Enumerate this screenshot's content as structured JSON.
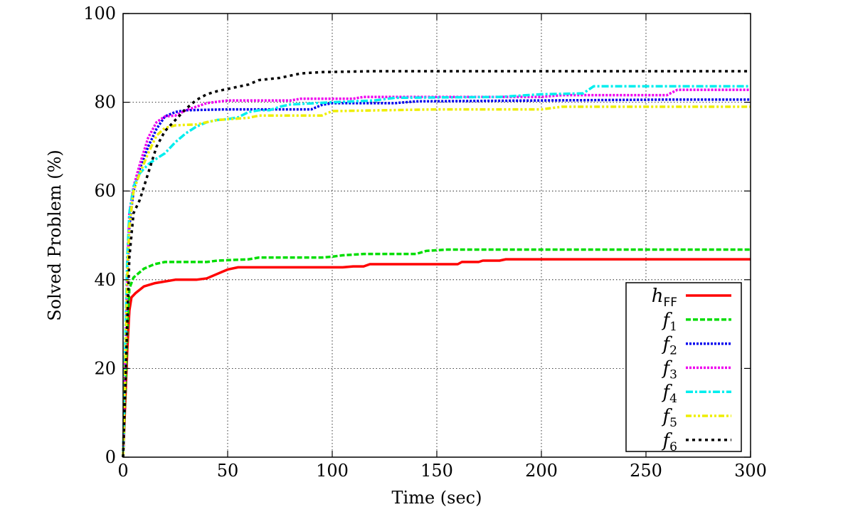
{
  "chart_data": {
    "type": "line",
    "title": "",
    "xlabel": "Time (sec)",
    "ylabel": "Solved Problem (%)",
    "xlim": [
      0,
      300
    ],
    "ylim": [
      0,
      100
    ],
    "xticks": [
      "0",
      "50",
      "100",
      "150",
      "200",
      "250",
      "300"
    ],
    "yticks": [
      "0",
      "20",
      "40",
      "60",
      "80",
      "100"
    ],
    "grid": true,
    "legend_position": "bottom-right",
    "series": [
      {
        "name": "h",
        "subscript": "FF",
        "color": "#ff0000",
        "dash": "solid",
        "points": [
          [
            0,
            0
          ],
          [
            1,
            12
          ],
          [
            2,
            24
          ],
          [
            3,
            33
          ],
          [
            4,
            36
          ],
          [
            6,
            37
          ],
          [
            10,
            38.5
          ],
          [
            15,
            39.2
          ],
          [
            25,
            40
          ],
          [
            35,
            40
          ],
          [
            40,
            40.3
          ],
          [
            45,
            41.3
          ],
          [
            50,
            42.3
          ],
          [
            55,
            42.8
          ],
          [
            100,
            42.8
          ],
          [
            105,
            42.8
          ],
          [
            110,
            43
          ],
          [
            115,
            43
          ],
          [
            118,
            43.5
          ],
          [
            155,
            43.5
          ],
          [
            160,
            43.5
          ],
          [
            162,
            44
          ],
          [
            170,
            44
          ],
          [
            172,
            44.3
          ],
          [
            180,
            44.3
          ],
          [
            183,
            44.6
          ],
          [
            300,
            44.6
          ]
        ]
      },
      {
        "name": "f",
        "subscript": "1",
        "color": "#00dd00",
        "dash": "dashed",
        "points": [
          [
            0,
            0
          ],
          [
            1,
            14
          ],
          [
            2,
            28
          ],
          [
            3,
            38
          ],
          [
            5,
            40.5
          ],
          [
            10,
            42.5
          ],
          [
            15,
            43.5
          ],
          [
            20,
            44
          ],
          [
            40,
            44
          ],
          [
            45,
            44.3
          ],
          [
            55,
            44.5
          ],
          [
            60,
            44.6
          ],
          [
            65,
            45
          ],
          [
            95,
            45
          ],
          [
            100,
            45.2
          ],
          [
            105,
            45.5
          ],
          [
            115,
            45.8
          ],
          [
            140,
            45.8
          ],
          [
            145,
            46.5
          ],
          [
            155,
            46.8
          ],
          [
            300,
            46.8
          ]
        ]
      },
      {
        "name": "f",
        "subscript": "2",
        "color": "#0000ee",
        "dash": "dotted",
        "points": [
          [
            0,
            0
          ],
          [
            1,
            20
          ],
          [
            2,
            40
          ],
          [
            3,
            52
          ],
          [
            5,
            60
          ],
          [
            8,
            65
          ],
          [
            12,
            70
          ],
          [
            16,
            74
          ],
          [
            20,
            76.8
          ],
          [
            25,
            77.8
          ],
          [
            30,
            78.2
          ],
          [
            50,
            78.4
          ],
          [
            90,
            78.4
          ],
          [
            95,
            79.4
          ],
          [
            100,
            79.8
          ],
          [
            130,
            79.8
          ],
          [
            140,
            80.2
          ],
          [
            200,
            80.4
          ],
          [
            260,
            80.6
          ],
          [
            300,
            80.6
          ]
        ]
      },
      {
        "name": "f",
        "subscript": "3",
        "color": "#ee00ee",
        "dash": "dotted",
        "points": [
          [
            0,
            0
          ],
          [
            1,
            22
          ],
          [
            2,
            42
          ],
          [
            3,
            55
          ],
          [
            5,
            61
          ],
          [
            8,
            66
          ],
          [
            12,
            72
          ],
          [
            16,
            75.5
          ],
          [
            20,
            76.8
          ],
          [
            25,
            77
          ],
          [
            30,
            78.2
          ],
          [
            40,
            79.8
          ],
          [
            50,
            80.4
          ],
          [
            80,
            80.4
          ],
          [
            85,
            80.8
          ],
          [
            110,
            80.8
          ],
          [
            115,
            81.2
          ],
          [
            200,
            81.2
          ],
          [
            210,
            81.6
          ],
          [
            260,
            81.6
          ],
          [
            265,
            82.8
          ],
          [
            300,
            82.8
          ]
        ]
      },
      {
        "name": "f",
        "subscript": "4",
        "color": "#00eeee",
        "dash": "dashdot",
        "points": [
          [
            0,
            0
          ],
          [
            1,
            25
          ],
          [
            2,
            45
          ],
          [
            3,
            55
          ],
          [
            5,
            61
          ],
          [
            8,
            64
          ],
          [
            12,
            66
          ],
          [
            15,
            67
          ],
          [
            20,
            68.5
          ],
          [
            25,
            71
          ],
          [
            30,
            73
          ],
          [
            35,
            74.5
          ],
          [
            40,
            75.5
          ],
          [
            45,
            76
          ],
          [
            50,
            76.2
          ],
          [
            55,
            76.6
          ],
          [
            60,
            77.8
          ],
          [
            65,
            78.2
          ],
          [
            70,
            78.2
          ],
          [
            75,
            79
          ],
          [
            80,
            79.5
          ],
          [
            100,
            80
          ],
          [
            120,
            80.4
          ],
          [
            130,
            81
          ],
          [
            180,
            81.2
          ],
          [
            200,
            81.8
          ],
          [
            220,
            82
          ],
          [
            225,
            83.6
          ],
          [
            300,
            83.6
          ]
        ]
      },
      {
        "name": "f",
        "subscript": "5",
        "color": "#eeee00",
        "dash": "dashdotdot",
        "points": [
          [
            0,
            0
          ],
          [
            1,
            20
          ],
          [
            2,
            40
          ],
          [
            3,
            52
          ],
          [
            5,
            60
          ],
          [
            8,
            64
          ],
          [
            12,
            68.5
          ],
          [
            16,
            72.5
          ],
          [
            20,
            74.2
          ],
          [
            25,
            74.8
          ],
          [
            35,
            75
          ],
          [
            40,
            75.5
          ],
          [
            45,
            76
          ],
          [
            60,
            76.5
          ],
          [
            65,
            77
          ],
          [
            95,
            77
          ],
          [
            100,
            78
          ],
          [
            150,
            78.4
          ],
          [
            200,
            78.4
          ],
          [
            210,
            79
          ],
          [
            300,
            79
          ]
        ]
      },
      {
        "name": "f",
        "subscript": "6",
        "color": "#000000",
        "dash": "sparse-dotted",
        "points": [
          [
            0,
            0
          ],
          [
            1,
            15
          ],
          [
            2,
            30
          ],
          [
            3,
            45
          ],
          [
            5,
            55
          ],
          [
            8,
            58
          ],
          [
            12,
            64
          ],
          [
            16,
            70
          ],
          [
            20,
            73.5
          ],
          [
            25,
            76
          ],
          [
            30,
            78.5
          ],
          [
            35,
            80.5
          ],
          [
            40,
            81.8
          ],
          [
            45,
            82.5
          ],
          [
            50,
            83
          ],
          [
            55,
            83.5
          ],
          [
            60,
            84
          ],
          [
            65,
            85
          ],
          [
            75,
            85.5
          ],
          [
            80,
            86
          ],
          [
            85,
            86.5
          ],
          [
            95,
            86.8
          ],
          [
            120,
            87
          ],
          [
            300,
            87
          ]
        ]
      }
    ]
  }
}
